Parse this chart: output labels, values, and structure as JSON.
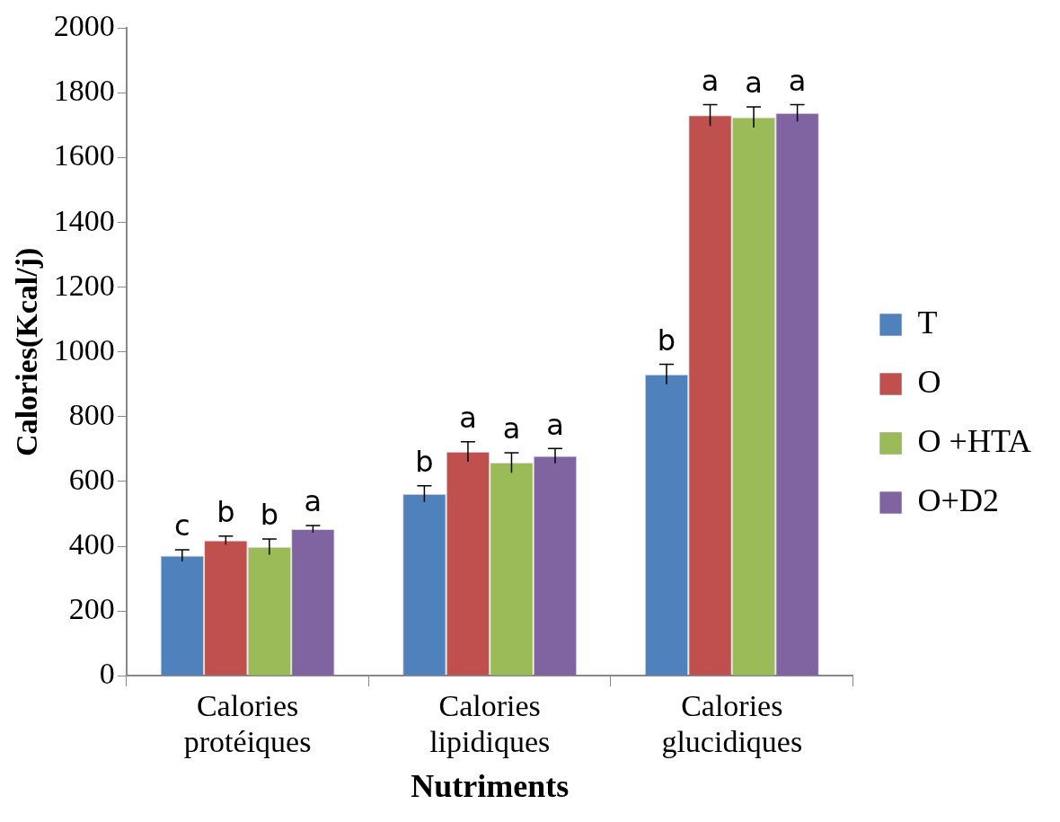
{
  "chart_data": {
    "type": "bar",
    "xlabel": "Nutriments",
    "ylabel": "Calories(Kcal/j)",
    "categories": [
      "Calories protéiques",
      "Calories lipidiques",
      "Calories glucidiques"
    ],
    "series": [
      {
        "name": "T",
        "color": "#4f81bd",
        "values": [
          371,
          562,
          931
        ],
        "errors": [
          18,
          25,
          31
        ],
        "value_labels": [
          "c",
          "b",
          "b"
        ]
      },
      {
        "name": "O",
        "color": "#c0504d",
        "values": [
          418,
          692,
          1731
        ],
        "errors": [
          13,
          31,
          33
        ],
        "value_labels": [
          "b",
          "a",
          "a"
        ]
      },
      {
        "name": "O +HTA",
        "color": "#9bbb59",
        "values": [
          398,
          658,
          1725
        ],
        "errors": [
          24,
          31,
          32
        ],
        "value_labels": [
          "b",
          "a",
          "a"
        ]
      },
      {
        "name": "O+D2",
        "color": "#8064a2",
        "values": [
          453,
          679,
          1738
        ],
        "errors": [
          11,
          23,
          26
        ],
        "value_labels": [
          "a",
          "a",
          "a"
        ]
      }
    ],
    "ylim": [
      0,
      2000
    ],
    "yticks": [
      0,
      200,
      400,
      600,
      800,
      1000,
      1200,
      1400,
      1600,
      1800,
      2000
    ],
    "grid": false,
    "legend": "right"
  }
}
